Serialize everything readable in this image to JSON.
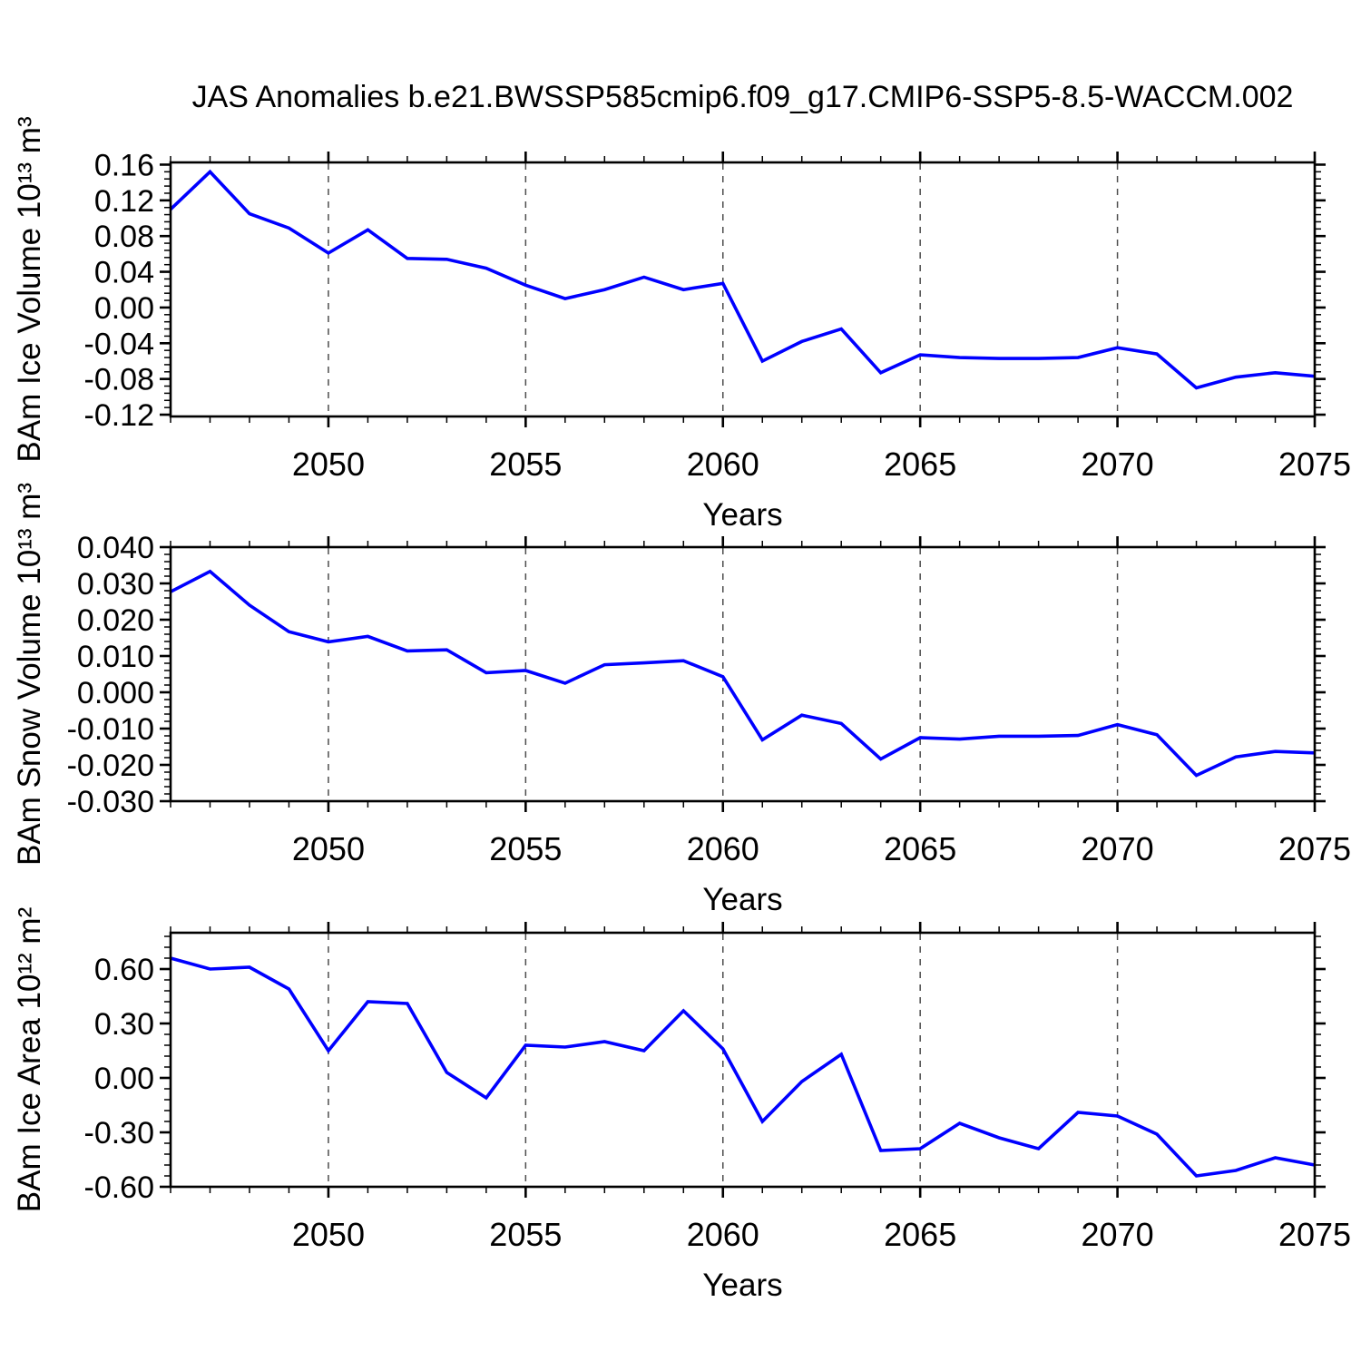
{
  "title": "JAS Anomalies b.e21.BWSSP585cmip6.f09_g17.CMIP6-SSP5-8.5-WACCM.002",
  "background": "#ffffff",
  "colors": {
    "line": "#0000ff",
    "frame": "#000000",
    "grid": "#4d4d4d",
    "text": "#000000"
  },
  "x_axis": {
    "label": "Years",
    "min": 2046,
    "max": 2075,
    "major_ticks": [
      2050,
      2055,
      2060,
      2065,
      2070,
      2075
    ],
    "minor_step": 1,
    "gridline_years": [
      2050,
      2055,
      2060,
      2065,
      2070
    ]
  },
  "years": [
    2046,
    2047,
    2048,
    2049,
    2050,
    2051,
    2052,
    2053,
    2054,
    2055,
    2056,
    2057,
    2058,
    2059,
    2060,
    2061,
    2062,
    2063,
    2064,
    2065,
    2066,
    2067,
    2068,
    2069,
    2070,
    2071,
    2072,
    2073,
    2074,
    2075
  ],
  "chart_data": [
    {
      "type": "line",
      "name": "bam-ice-volume",
      "ylabel": "BAm Ice Volume 10¹³ m³",
      "xlabel": "Years",
      "ylim": [
        -0.122,
        0.1625
      ],
      "ytick_values": [
        0.16,
        0.12,
        0.08,
        0.04,
        0.0,
        -0.04,
        -0.08,
        -0.12
      ],
      "ytick_labels": [
        "0.16",
        "0.12",
        "0.08",
        "0.04",
        "0.00",
        "-0.04",
        "-0.08",
        "-0.12"
      ],
      "yminor_step": 0.008,
      "values": [
        0.11,
        0.152,
        0.105,
        0.089,
        0.061,
        0.087,
        0.055,
        0.054,
        0.044,
        0.025,
        0.01,
        0.02,
        0.034,
        0.02,
        0.027,
        -0.06,
        -0.038,
        -0.024,
        -0.073,
        -0.053,
        -0.056,
        -0.057,
        -0.057,
        -0.056,
        -0.045,
        -0.052,
        -0.09,
        -0.078,
        -0.073,
        -0.077
      ]
    },
    {
      "type": "line",
      "name": "bam-snow-volume",
      "ylabel": "BAm Snow Volume 10¹³ m³",
      "xlabel": "Years",
      "ylim": [
        -0.03,
        0.04
      ],
      "ytick_values": [
        0.04,
        0.03,
        0.02,
        0.01,
        0.0,
        -0.01,
        -0.02,
        -0.03
      ],
      "ytick_labels": [
        "0.040",
        "0.030",
        "0.020",
        "0.010",
        "0.000",
        "-0.010",
        "-0.020",
        "-0.030"
      ],
      "yminor_step": 0.002,
      "values": [
        0.0277,
        0.0333,
        0.024,
        0.0167,
        0.0139,
        0.0154,
        0.0114,
        0.0117,
        0.0054,
        0.006,
        0.0025,
        0.0076,
        0.0081,
        0.0087,
        0.0043,
        -0.0131,
        -0.0063,
        -0.0086,
        -0.0184,
        -0.0125,
        -0.0129,
        -0.0121,
        -0.0121,
        -0.0119,
        -0.0089,
        -0.0117,
        -0.0229,
        -0.0178,
        -0.0163,
        -0.0167
      ]
    },
    {
      "type": "line",
      "name": "bam-ice-area",
      "ylabel": "BAm Ice Area 10¹² m²",
      "xlabel": "Years",
      "ylim": [
        -0.6,
        0.8
      ],
      "ytick_values": [
        0.6,
        0.3,
        0.0,
        -0.3,
        -0.6
      ],
      "ytick_labels": [
        "0.60",
        "0.30",
        "0.00",
        "-0.30",
        "-0.60"
      ],
      "yminor_step": 0.06,
      "values": [
        0.66,
        0.6,
        0.61,
        0.49,
        0.15,
        0.42,
        0.41,
        0.03,
        -0.11,
        0.18,
        0.17,
        0.2,
        0.15,
        0.37,
        0.16,
        -0.24,
        -0.02,
        0.13,
        -0.4,
        -0.39,
        -0.25,
        -0.33,
        -0.39,
        -0.19,
        -0.21,
        -0.31,
        -0.54,
        -0.51,
        -0.44,
        -0.48
      ]
    }
  ]
}
